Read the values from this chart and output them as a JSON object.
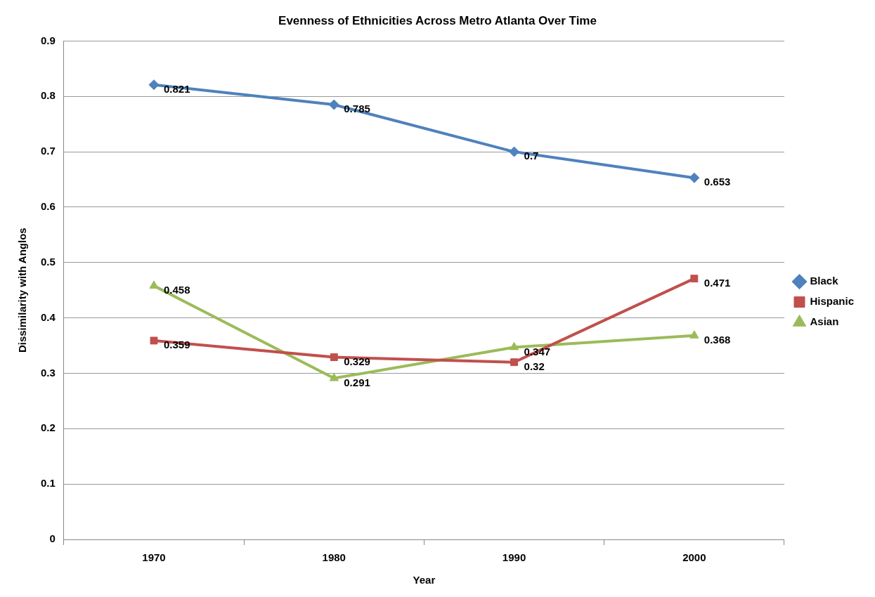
{
  "chart_data": {
    "type": "line",
    "title": "Evenness of Ethnicities Across Metro Atlanta Over Time",
    "xlabel": "Year",
    "ylabel": "Dissimilarity with Anglos",
    "categories": [
      "1970",
      "1980",
      "1990",
      "2000"
    ],
    "series": [
      {
        "name": "Black",
        "color": "#4f81bd",
        "marker": "diamond",
        "values": [
          0.821,
          0.785,
          0.7,
          0.653
        ]
      },
      {
        "name": "Hispanic",
        "color": "#c0504d",
        "marker": "square",
        "values": [
          0.359,
          0.329,
          0.32,
          0.471
        ]
      },
      {
        "name": "Asian",
        "color": "#9bbb59",
        "marker": "triangle",
        "values": [
          0.458,
          0.291,
          0.347,
          0.368
        ]
      }
    ],
    "ylim": [
      0,
      0.9
    ],
    "yticks": [
      0,
      0.1,
      0.2,
      0.3,
      0.4,
      0.5,
      0.6,
      0.7,
      0.8,
      0.9
    ],
    "grid": "y",
    "legend": "right",
    "data_labels": true,
    "line_style": "solid"
  }
}
